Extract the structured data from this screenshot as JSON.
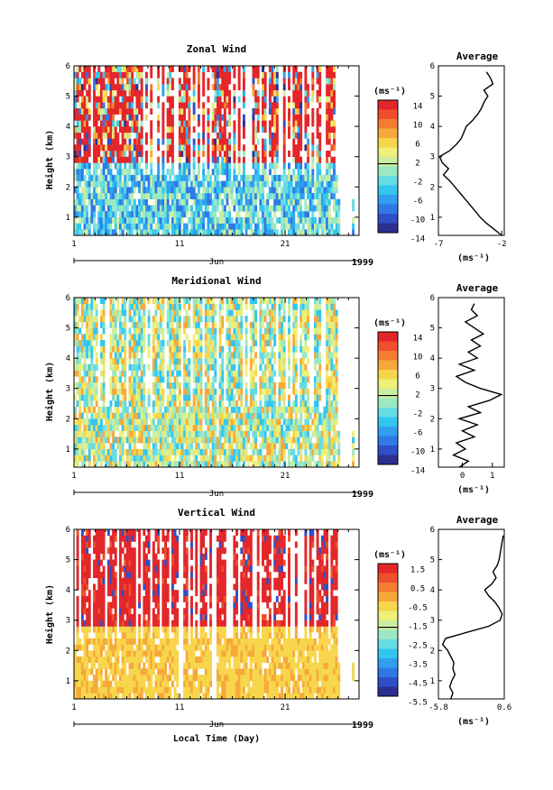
{
  "figure": {
    "xlabel": "Local Time (Day)",
    "month_label": "Jun",
    "year_label": "1999"
  },
  "chart_data": [
    {
      "type": "heatmap",
      "title": "Zonal Wind",
      "xlabel": "",
      "ylabel": "Height (km)",
      "unit_label": "(ms⁻¹)",
      "x_ticks": [
        "1",
        "11",
        "21"
      ],
      "x_tick_values": [
        1,
        11,
        21
      ],
      "xlim": [
        1,
        28
      ],
      "y_ticks": [
        "1",
        "2",
        "3",
        "4",
        "5",
        "6"
      ],
      "ylim": [
        0.4,
        6
      ],
      "colorbar": {
        "labels": [
          "14",
          "10",
          "6",
          "2",
          "-2",
          "-6",
          "-10",
          "-14"
        ],
        "range": [
          -16,
          16
        ],
        "colors": [
          "#2b2f8f",
          "#2f4fc7",
          "#2f78e6",
          "#2fa0ee",
          "#33c6ef",
          "#67dbe4",
          "#9be8c3",
          "#cdeea0",
          "#eef078",
          "#f7d64c",
          "#f7a83a",
          "#f57c31",
          "#ef4f2c",
          "#e3262a"
        ]
      },
      "profile": {
        "title": "Average",
        "xlabel": "(ms⁻¹)",
        "x_ticks": [
          "-7",
          "-2"
        ],
        "x_tick_values": [
          -7,
          -2
        ],
        "xlim": [
          -7,
          -1.8
        ],
        "heights": [
          0.4,
          0.6,
          0.8,
          1.0,
          1.2,
          1.4,
          1.6,
          1.8,
          2.0,
          2.2,
          2.4,
          2.6,
          2.8,
          3.0,
          3.2,
          3.4,
          3.6,
          3.8,
          4.0,
          4.2,
          4.4,
          4.6,
          4.8,
          5.0,
          5.2,
          5.4,
          5.6,
          5.8
        ],
        "values": [
          -2.0,
          -2.6,
          -3.2,
          -3.7,
          -4.1,
          -4.5,
          -4.9,
          -5.3,
          -5.7,
          -6.1,
          -6.6,
          -6.2,
          -6.7,
          -6.9,
          -6.1,
          -5.6,
          -5.2,
          -5.0,
          -4.8,
          -4.3,
          -3.9,
          -3.6,
          -3.4,
          -3.1,
          -3.4,
          -2.7,
          -2.9,
          -3.2
        ]
      }
    },
    {
      "type": "heatmap",
      "title": "Meridional Wind",
      "xlabel": "",
      "ylabel": "Height (km)",
      "unit_label": "(ms⁻¹)",
      "x_ticks": [
        "1",
        "11",
        "21"
      ],
      "x_tick_values": [
        1,
        11,
        21
      ],
      "xlim": [
        1,
        28
      ],
      "y_ticks": [
        "1",
        "2",
        "3",
        "4",
        "5",
        "6"
      ],
      "ylim": [
        0.4,
        6
      ],
      "colorbar": {
        "labels": [
          "14",
          "10",
          "6",
          "2",
          "-2",
          "-6",
          "-10",
          "-14"
        ],
        "range": [
          -16,
          16
        ],
        "colors": [
          "#2b2f8f",
          "#2f4fc7",
          "#2f78e6",
          "#2fa0ee",
          "#33c6ef",
          "#67dbe4",
          "#9be8c3",
          "#cdeea0",
          "#eef078",
          "#f7d64c",
          "#f7a83a",
          "#f57c31",
          "#ef4f2c",
          "#e3262a"
        ]
      },
      "profile": {
        "title": "Average",
        "xlabel": "(ms⁻¹)",
        "x_ticks": [
          "0",
          "1"
        ],
        "x_tick_values": [
          0,
          1
        ],
        "xlim": [
          -0.8,
          1.4
        ],
        "heights": [
          0.4,
          0.6,
          0.8,
          1.0,
          1.2,
          1.4,
          1.6,
          1.8,
          2.0,
          2.2,
          2.4,
          2.6,
          2.8,
          3.0,
          3.2,
          3.4,
          3.6,
          3.8,
          4.0,
          4.2,
          4.4,
          4.6,
          4.8,
          5.0,
          5.2,
          5.4,
          5.6,
          5.8
        ],
        "values": [
          -0.1,
          0.2,
          -0.3,
          0.1,
          -0.2,
          0.4,
          0.0,
          0.5,
          -0.1,
          0.6,
          0.2,
          0.9,
          1.3,
          0.6,
          0.1,
          -0.2,
          0.4,
          -0.1,
          0.5,
          0.2,
          0.6,
          0.3,
          0.7,
          0.4,
          0.1,
          0.5,
          0.3,
          0.4
        ]
      }
    },
    {
      "type": "heatmap",
      "title": "Vertical Wind",
      "xlabel": "Local Time (Day)",
      "ylabel": "Height (km)",
      "unit_label": "(ms⁻¹)",
      "x_ticks": [
        "1",
        "11",
        "21"
      ],
      "x_tick_values": [
        1,
        11,
        21
      ],
      "xlim": [
        1,
        28
      ],
      "y_ticks": [
        "1",
        "2",
        "3",
        "4",
        "5",
        "6"
      ],
      "ylim": [
        0.4,
        6
      ],
      "colorbar": {
        "labels": [
          "1.5",
          "0.5",
          "-0.5",
          "-1.5",
          "-2.5",
          "-3.5",
          "-4.5",
          "-5.5"
        ],
        "range": [
          -6,
          2
        ],
        "colors": [
          "#2b2f8f",
          "#2f4fc7",
          "#2f78e6",
          "#2fa0ee",
          "#33c6ef",
          "#67dbe4",
          "#9be8c3",
          "#cdeea0",
          "#eef078",
          "#f7d64c",
          "#f7a83a",
          "#f57c31",
          "#ef4f2c",
          "#e3262a"
        ]
      },
      "profile": {
        "title": "Average",
        "xlabel": "(ms⁻¹)",
        "x_ticks": [
          "-5.8",
          "0.6"
        ],
        "x_tick_values": [
          -5.8,
          0.6
        ],
        "xlim": [
          -5.8,
          0.6
        ],
        "heights": [
          0.4,
          0.6,
          0.8,
          1.0,
          1.2,
          1.4,
          1.6,
          1.8,
          2.0,
          2.2,
          2.4,
          2.6,
          2.8,
          3.0,
          3.2,
          3.4,
          3.6,
          3.8,
          4.0,
          4.2,
          4.4,
          4.6,
          4.8,
          5.0,
          5.2,
          5.4,
          5.6,
          5.8
        ],
        "values": [
          -4.6,
          -4.4,
          -4.7,
          -4.5,
          -4.2,
          -4.4,
          -4.3,
          -4.6,
          -4.9,
          -5.4,
          -5.1,
          -3.0,
          -0.9,
          0.2,
          0.4,
          0.1,
          -0.3,
          -0.9,
          -1.3,
          -0.6,
          -0.2,
          -0.5,
          -0.1,
          0.1,
          0.2,
          0.3,
          0.4,
          0.5
        ]
      }
    }
  ]
}
